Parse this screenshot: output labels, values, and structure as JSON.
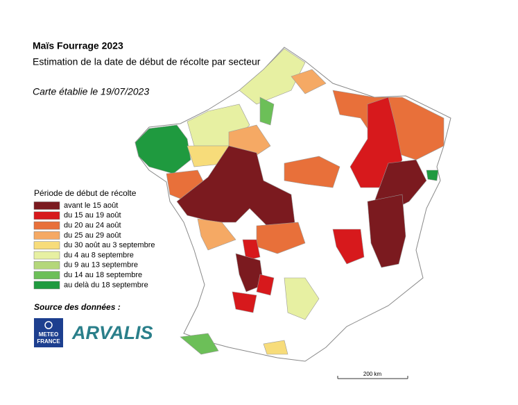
{
  "header": {
    "title": "Maïs Fourrage 2023",
    "subtitle": "Estimation de la date de début de récolte par secteur",
    "date_note": "Carte établie le 19/07/2023"
  },
  "legend": {
    "title": "Période de début de récolte",
    "items": [
      {
        "label": "avant le 15 août",
        "color": "#7b1a1f"
      },
      {
        "label": "du 15 au 19 août",
        "color": "#d7191c"
      },
      {
        "label": "du 20 au 24 août",
        "color": "#e8703a"
      },
      {
        "label": "du 25 au 29 août",
        "color": "#f5a964"
      },
      {
        "label": "du 30 août au 3 septembre",
        "color": "#f7dc7a"
      },
      {
        "label": "du 4 au 8 septembre",
        "color": "#e7f0a2"
      },
      {
        "label": "du 9 au 13 septembre",
        "color": "#b4d77a"
      },
      {
        "label": "du 14 au 18 septembre",
        "color": "#6cbf58"
      },
      {
        "label": "au delà du 18 septembre",
        "color": "#1f9a3f"
      }
    ]
  },
  "source": {
    "label": "Source des données :",
    "logos": [
      {
        "lines": [
          "METEO",
          "FRANCE"
        ]
      },
      {
        "text": "ARVALIS"
      }
    ]
  },
  "scale_bar": {
    "label": "200 km"
  }
}
